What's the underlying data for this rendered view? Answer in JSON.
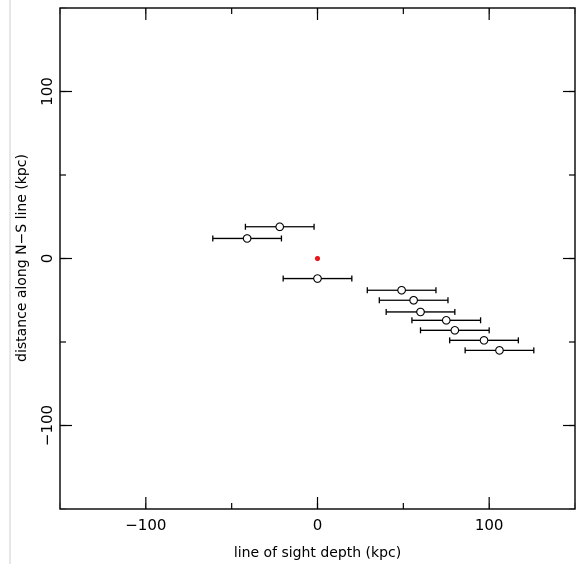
{
  "chart_data": {
    "type": "scatter",
    "xlabel": "line of sight depth (kpc)",
    "ylabel": "distance along N−S line (kpc)",
    "xlim": [
      -150,
      150
    ],
    "ylim": [
      -150,
      150
    ],
    "x_ticks": [
      {
        "value": -100,
        "label": "−100"
      },
      {
        "value": 0,
        "label": "0"
      },
      {
        "value": 100,
        "label": "100"
      }
    ],
    "y_ticks": [
      {
        "value": -100,
        "label": "−100"
      },
      {
        "value": 0,
        "label": "0"
      },
      {
        "value": 100,
        "label": "100"
      }
    ],
    "x_minor_step": 50,
    "y_minor_step": 50,
    "grid": false,
    "series": [
      {
        "marker": "open-circle",
        "color": "#000000",
        "points": [
          {
            "x": -22,
            "y": 19,
            "xerr": 20
          },
          {
            "x": -41,
            "y": 12,
            "xerr": 20
          },
          {
            "x": 0,
            "y": -12,
            "xerr": 20
          },
          {
            "x": 49,
            "y": -19,
            "xerr": 20
          },
          {
            "x": 56,
            "y": -25,
            "xerr": 20
          },
          {
            "x": 60,
            "y": -32,
            "xerr": 20
          },
          {
            "x": 75,
            "y": -37,
            "xerr": 20
          },
          {
            "x": 80,
            "y": -43,
            "xerr": 20
          },
          {
            "x": 97,
            "y": -49,
            "xerr": 20
          },
          {
            "x": 106,
            "y": -55,
            "xerr": 20
          }
        ]
      },
      {
        "marker": "filled-dot",
        "color": "#e8191c",
        "points": [
          {
            "x": 0,
            "y": 0
          }
        ]
      }
    ]
  }
}
